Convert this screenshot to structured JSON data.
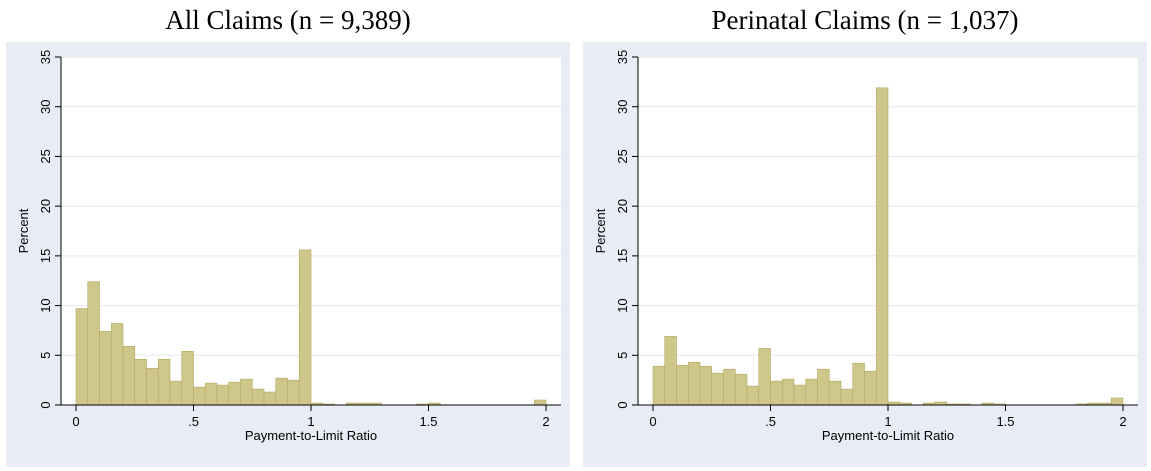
{
  "chart_data": [
    {
      "type": "bar",
      "title": "All Claims (n = 9,389)",
      "xlabel": "Payment-to-Limit Ratio",
      "ylabel": "Percent",
      "xlim": [
        0,
        2
      ],
      "ylim": [
        0,
        35
      ],
      "xticks": [
        0,
        0.5,
        1,
        1.5,
        2
      ],
      "xtick_labels": [
        "0",
        ".5",
        "1",
        "1.5",
        "2"
      ],
      "yticks": [
        0,
        5,
        10,
        15,
        20,
        25,
        30,
        35
      ],
      "ytick_labels": [
        "0",
        "5",
        "10",
        "15",
        "20",
        "25",
        "30",
        "35"
      ],
      "grid": true,
      "legend": "none",
      "bin_width": 0.05,
      "bin_start": 0,
      "values": [
        9.7,
        12.4,
        7.4,
        8.2,
        5.9,
        4.6,
        3.7,
        4.6,
        2.4,
        5.4,
        1.8,
        2.2,
        2.0,
        2.3,
        2.6,
        1.6,
        1.3,
        2.7,
        2.5,
        15.6,
        0.2,
        0.1,
        0.0,
        0.2,
        0.2,
        0.2,
        0.0,
        0.0,
        0.0,
        0.1,
        0.2,
        0.0,
        0.0,
        0.0,
        0.0,
        0.0,
        0.0,
        0.0,
        0.0,
        0.5
      ]
    },
    {
      "type": "bar",
      "title": "Perinatal Claims (n = 1,037)",
      "xlabel": "Payment-to-Limit Ratio",
      "ylabel": "Percent",
      "xlim": [
        0,
        2
      ],
      "ylim": [
        0,
        35
      ],
      "xticks": [
        0,
        0.5,
        1,
        1.5,
        2
      ],
      "xtick_labels": [
        "0",
        ".5",
        "1",
        "1.5",
        "2"
      ],
      "yticks": [
        0,
        5,
        10,
        15,
        20,
        25,
        30,
        35
      ],
      "ytick_labels": [
        "0",
        "5",
        "10",
        "15",
        "20",
        "25",
        "30",
        "35"
      ],
      "grid": true,
      "legend": "none",
      "bin_width": 0.05,
      "bin_start": 0,
      "values": [
        3.9,
        6.9,
        4.0,
        4.3,
        3.9,
        3.2,
        3.6,
        3.1,
        1.9,
        5.7,
        2.4,
        2.6,
        2.0,
        2.6,
        3.6,
        2.4,
        1.6,
        4.2,
        3.4,
        31.9,
        0.3,
        0.2,
        0.0,
        0.2,
        0.3,
        0.1,
        0.1,
        0.0,
        0.2,
        0.1,
        0.0,
        0.0,
        0.0,
        0.0,
        0.0,
        0.0,
        0.1,
        0.2,
        0.2,
        0.7
      ]
    }
  ],
  "colors": {
    "panel_background": "#e8edf5",
    "plot_background": "#ffffff",
    "bar_fill": "#cfc78a",
    "bar_edge": "#b2a866",
    "gridline": "#e6e8ec",
    "axis": "#000000"
  }
}
